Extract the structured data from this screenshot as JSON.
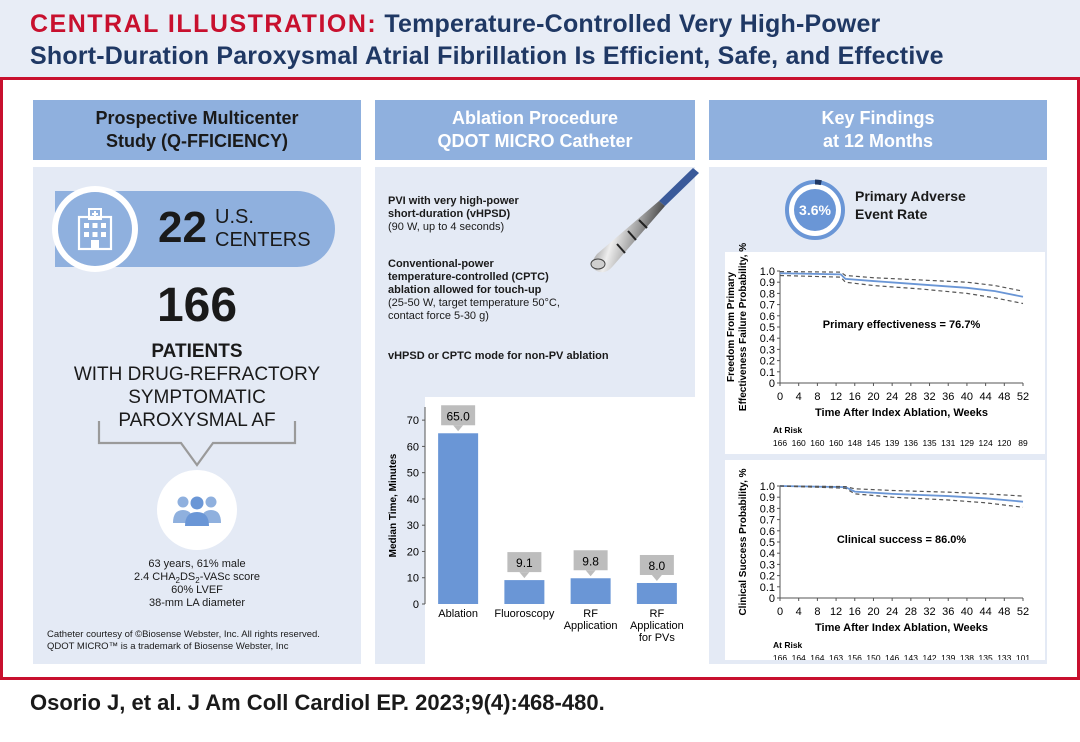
{
  "header": {
    "label": "CENTRAL ILLUSTRATION:",
    "title_line1": "Temperature-Controlled Very High-Power",
    "title_line2": "Short-Duration Paroxysmal Atrial Fibrillation Is Efficient, Safe, and Effective"
  },
  "col1": {
    "heading_line1": "Prospective Multicenter",
    "heading_line2": "Study (Q-FFICIENCY)",
    "centers_number": "22",
    "centers_line1": "U.S.",
    "centers_line2": "CENTERS",
    "patients_number": "166",
    "patients_line1": "PATIENTS",
    "patients_line2": "WITH DRUG-REFRACTORY",
    "patients_line3": "SYMPTOMATIC",
    "patients_line4": "PAROXYSMAL AF",
    "demo_line1": "63 years, 61% male",
    "demo_line2_pre": "2.4 CHA",
    "demo_line2_sub1": "2",
    "demo_line2_mid": "DS",
    "demo_line2_sub2": "2",
    "demo_line2_post": "-VASc score",
    "demo_line3": "60% LVEF",
    "demo_line4": "38-mm LA diameter",
    "credit_line1": "Catheter courtesy of ©Biosense Webster, Inc. All rights reserved.",
    "credit_line2": "QDOT MICRO™ is a trademark of Biosense Webster, Inc"
  },
  "col2": {
    "heading_line1": "Ablation Procedure",
    "heading_line2": "QDOT MICRO Catheter",
    "pvi_bold1": "PVI with very high-power",
    "pvi_bold2": "short-duration (vHPSD)",
    "pvi_normal": "(90 W, up to 4 seconds)",
    "cptc_bold1": "Conventional-power",
    "cptc_bold2": "temperature-controlled (CPTC)",
    "cptc_bold3": "ablation allowed for touch-up",
    "cptc_normal1": "(25-50 W, target temperature 50°C,",
    "cptc_normal2": "contact force 5-30 g)",
    "nonpv_bold": "vHPSD or CPTC mode for non-PV ablation"
  },
  "col3": {
    "heading_line1": "Key Findings",
    "heading_line2": "at 12 Months",
    "adverse_value": "3.6%",
    "adverse_fraction": 0.036,
    "adverse_line1": "Primary Adverse",
    "adverse_line2": "Event Rate"
  },
  "chart_data": [
    {
      "type": "bar",
      "categories": [
        "Ablation",
        "Fluoroscopy",
        "RF Application",
        "RF Application for PVs"
      ],
      "category_lines": [
        [
          "Ablation"
        ],
        [
          "Fluoroscopy"
        ],
        [
          "RF",
          "Application"
        ],
        [
          "RF",
          "Application",
          "for PVs"
        ]
      ],
      "values": [
        65.0,
        9.1,
        9.8,
        8.0
      ],
      "value_labels": [
        "65.0",
        "9.1",
        "9.8",
        "8.0"
      ],
      "ylabel": "Median Time, Minutes",
      "ylim": [
        0,
        75
      ],
      "yticks": [
        0,
        10,
        20,
        30,
        40,
        50,
        60,
        70
      ],
      "bar_color": "#6a96d6"
    },
    {
      "type": "line",
      "ylabel_line1": "Freedom From Primary",
      "ylabel_line2": "Effectiveness Failure Probability, %",
      "xlabel": "Time After Index Ablation, Weeks",
      "xticks": [
        0,
        4,
        8,
        12,
        16,
        20,
        24,
        28,
        32,
        36,
        40,
        44,
        48,
        52
      ],
      "yticks": [
        "0",
        "0.1",
        "0.2",
        "0.3",
        "0.4",
        "0.5",
        "0.6",
        "0.7",
        "0.8",
        "0.9",
        "1.0"
      ],
      "ylim": [
        0,
        1
      ],
      "xlim": [
        0,
        52
      ],
      "annotation": "Primary effectiveness = 76.7%",
      "at_risk_label": "At Risk",
      "at_risk": [
        "166",
        "160",
        "160",
        "160",
        "148",
        "145",
        "139",
        "136",
        "135",
        "131",
        "129",
        "124",
        "120",
        "89"
      ],
      "series": [
        {
          "x": [
            0,
            13,
            14,
            20,
            30,
            40,
            46,
            52
          ],
          "y": [
            0.98,
            0.97,
            0.93,
            0.91,
            0.88,
            0.85,
            0.82,
            0.77
          ]
        },
        {
          "x": [
            0,
            13,
            14,
            20,
            30,
            40,
            46,
            52
          ],
          "y": [
            0.995,
            0.99,
            0.96,
            0.94,
            0.92,
            0.9,
            0.87,
            0.82
          ]
        },
        {
          "x": [
            0,
            13,
            14,
            20,
            30,
            40,
            46,
            52
          ],
          "y": [
            0.96,
            0.945,
            0.9,
            0.87,
            0.84,
            0.8,
            0.76,
            0.71
          ]
        }
      ]
    },
    {
      "type": "line",
      "ylabel": "Clinical Success Probability, %",
      "xlabel": "Time After Index Ablation, Weeks",
      "xticks": [
        0,
        4,
        8,
        12,
        16,
        20,
        24,
        28,
        32,
        36,
        40,
        44,
        48,
        52
      ],
      "yticks": [
        "0",
        "0.1",
        "0.2",
        "0.3",
        "0.4",
        "0.5",
        "0.6",
        "0.7",
        "0.8",
        "0.9",
        "1.0"
      ],
      "ylim": [
        0,
        1
      ],
      "xlim": [
        0,
        52
      ],
      "annotation": "Clinical success = 86.0%",
      "at_risk_label": "At Risk",
      "at_risk": [
        "166",
        "164",
        "164",
        "163",
        "156",
        "150",
        "146",
        "143",
        "142",
        "139",
        "138",
        "135",
        "133",
        "101"
      ],
      "series": [
        {
          "x": [
            0,
            14,
            16,
            24,
            36,
            44,
            52
          ],
          "y": [
            1.0,
            0.99,
            0.95,
            0.93,
            0.91,
            0.89,
            0.86
          ]
        },
        {
          "x": [
            0,
            14,
            16,
            24,
            36,
            44,
            52
          ],
          "y": [
            1.0,
            0.995,
            0.975,
            0.96,
            0.945,
            0.93,
            0.91
          ]
        },
        {
          "x": [
            0,
            14,
            16,
            24,
            36,
            44,
            52
          ],
          "y": [
            1.0,
            0.98,
            0.93,
            0.9,
            0.875,
            0.85,
            0.81
          ]
        }
      ]
    }
  ],
  "citation": "Osorio J, et al. J Am Coll Cardiol EP. 2023;9(4):468-480."
}
